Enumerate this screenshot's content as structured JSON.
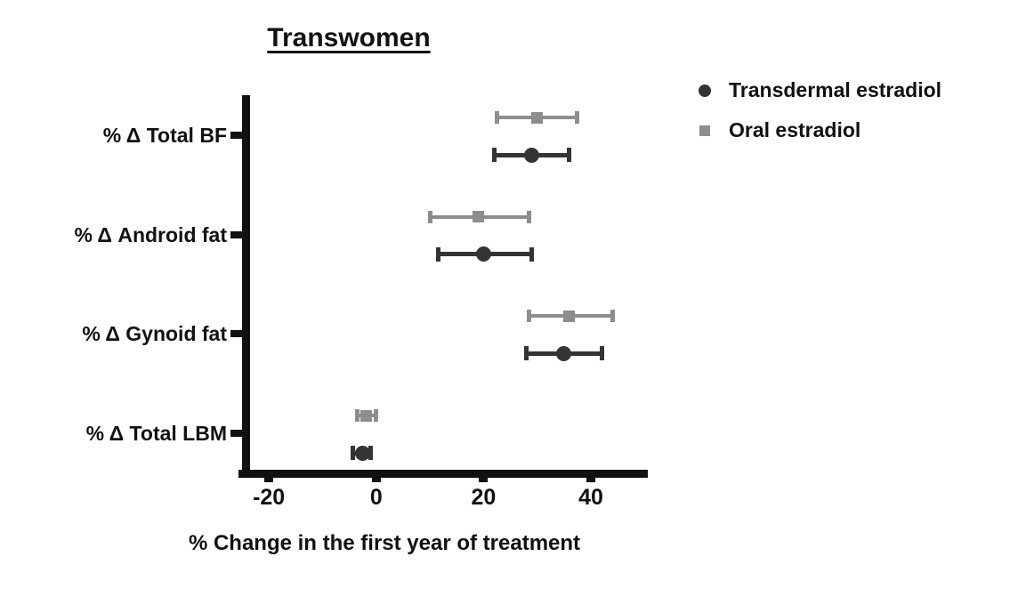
{
  "chart_data": {
    "type": "scatter",
    "subtype": "horizontal-point-estimates-with-error-bars",
    "title": "Transwomen",
    "xlabel": "% Change in the first year of treatment",
    "ylabel": "",
    "categories": [
      "% Δ Total BF",
      "% Δ Android fat",
      "% Δ Gynoid fat",
      "% Δ Total LBM"
    ],
    "xlim": [
      -25,
      50.6
    ],
    "xticks": [
      -20,
      0,
      20,
      40
    ],
    "grid": false,
    "legend_position": "top-right",
    "series": [
      {
        "name": "Transdermal estradiol",
        "marker": "circle",
        "color": "#343434",
        "values": [
          29,
          20,
          35,
          -2.6
        ],
        "ci_low": [
          22,
          11.5,
          28,
          -4.3
        ],
        "ci_high": [
          36,
          29,
          42,
          -1
        ]
      },
      {
        "name": "Oral estradiol",
        "marker": "square",
        "color": "#8d8d8d",
        "values": [
          30,
          19,
          36,
          -1.8
        ],
        "ci_low": [
          22.5,
          10,
          28.5,
          -3.6
        ],
        "ci_high": [
          37.5,
          28.5,
          44,
          0
        ]
      }
    ]
  }
}
